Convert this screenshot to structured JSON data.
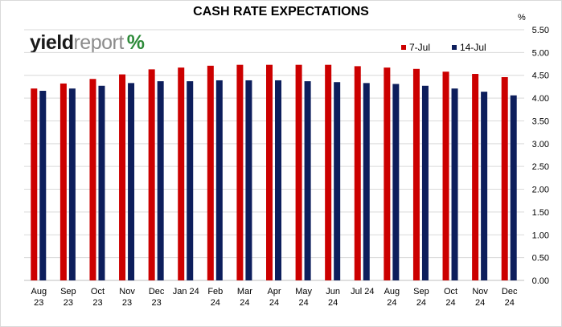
{
  "logo": {
    "word1": "yield",
    "word2": "report",
    "symbol": "%"
  },
  "chart_data": {
    "type": "bar",
    "title": "CASH RATE EXPECTATIONS",
    "ylabel": "%",
    "ylim": [
      0,
      5.5
    ],
    "yticks": [
      "0.00",
      "0.50",
      "1.00",
      "1.50",
      "2.00",
      "2.50",
      "3.00",
      "3.50",
      "4.00",
      "4.50",
      "5.00",
      "5.50"
    ],
    "categories": [
      [
        "Aug",
        "23"
      ],
      [
        "Sep",
        "23"
      ],
      [
        "Oct",
        "23"
      ],
      [
        "Nov",
        "23"
      ],
      [
        "Dec",
        "23"
      ],
      [
        "Jan 24",
        ""
      ],
      [
        "Feb",
        "24"
      ],
      [
        "Mar",
        "24"
      ],
      [
        "Apr",
        "24"
      ],
      [
        "May",
        "24"
      ],
      [
        "Jun",
        "24"
      ],
      [
        "Jul 24",
        ""
      ],
      [
        "Aug",
        "24"
      ],
      [
        "Sep",
        "24"
      ],
      [
        "Oct",
        "24"
      ],
      [
        "Nov",
        "24"
      ],
      [
        "Dec",
        "24"
      ]
    ],
    "series": [
      {
        "name": "7-Jul",
        "color": "#cc0000",
        "values": [
          4.21,
          4.32,
          4.42,
          4.52,
          4.63,
          4.67,
          4.71,
          4.73,
          4.73,
          4.73,
          4.73,
          4.7,
          4.67,
          4.64,
          4.58,
          4.53,
          4.46
        ]
      },
      {
        "name": "14-Jul",
        "color": "#0d1e5c",
        "values": [
          4.16,
          4.21,
          4.27,
          4.33,
          4.37,
          4.37,
          4.39,
          4.39,
          4.39,
          4.37,
          4.35,
          4.33,
          4.31,
          4.27,
          4.21,
          4.14,
          4.06
        ]
      }
    ],
    "grid": "horizontal",
    "legend_position": "top-right"
  }
}
